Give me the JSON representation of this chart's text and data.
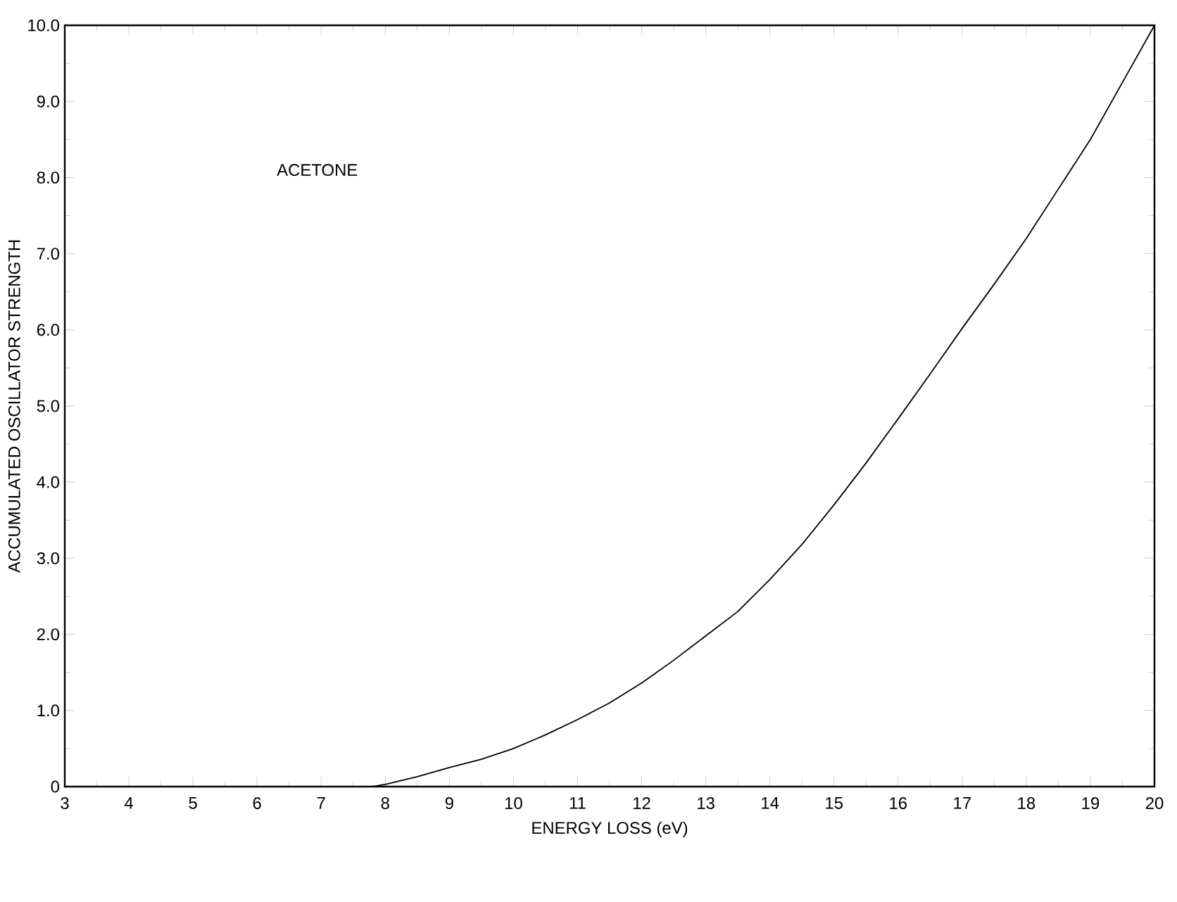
{
  "chart_data": {
    "type": "line",
    "xlabel": "ENERGY LOSS (eV)",
    "ylabel": "ACCUMULATED OSCILLATOR STRENGTH",
    "annotations": [
      "ACETONE"
    ],
    "x": [
      3,
      4,
      5,
      6,
      7,
      7.5,
      7.8,
      8,
      8.5,
      9,
      9.5,
      10,
      10.5,
      11,
      11.5,
      12,
      12.5,
      13,
      13.5,
      14,
      14.5,
      15,
      15.5,
      16,
      16.5,
      17,
      17.5,
      18,
      18.5,
      19,
      19.5,
      20
    ],
    "series": [
      {
        "color": "#000000",
        "values": [
          0,
          0,
          0,
          0,
          0,
          0,
          0,
          0.03,
          0.13,
          0.25,
          0.36,
          0.5,
          0.68,
          0.88,
          1.1,
          1.36,
          1.66,
          1.98,
          2.3,
          2.72,
          3.18,
          3.7,
          4.25,
          4.83,
          5.42,
          6.02,
          6.6,
          7.2,
          7.85,
          8.5,
          9.25,
          10.0
        ]
      }
    ],
    "xlim": [
      3,
      20
    ],
    "ylim": [
      0,
      10
    ],
    "xticks": [
      3,
      4,
      5,
      6,
      7,
      8,
      9,
      10,
      11,
      12,
      13,
      14,
      15,
      16,
      17,
      18,
      19,
      20
    ],
    "yticks": [
      0,
      {
        "value": 1,
        "label": "1.0"
      },
      {
        "value": 2,
        "label": "2.0"
      },
      {
        "value": 3,
        "label": "3.0"
      },
      {
        "value": 4,
        "label": "4.0"
      },
      {
        "value": 5,
        "label": "5.0"
      },
      {
        "value": 6,
        "label": "6.0"
      },
      {
        "value": 7,
        "label": "7.0"
      },
      {
        "value": 8,
        "label": "8.0"
      },
      {
        "value": 9,
        "label": "9.0"
      },
      {
        "value": 10,
        "label": "10.0"
      }
    ],
    "grid": false,
    "marker": "none",
    "line_style": "solid"
  }
}
